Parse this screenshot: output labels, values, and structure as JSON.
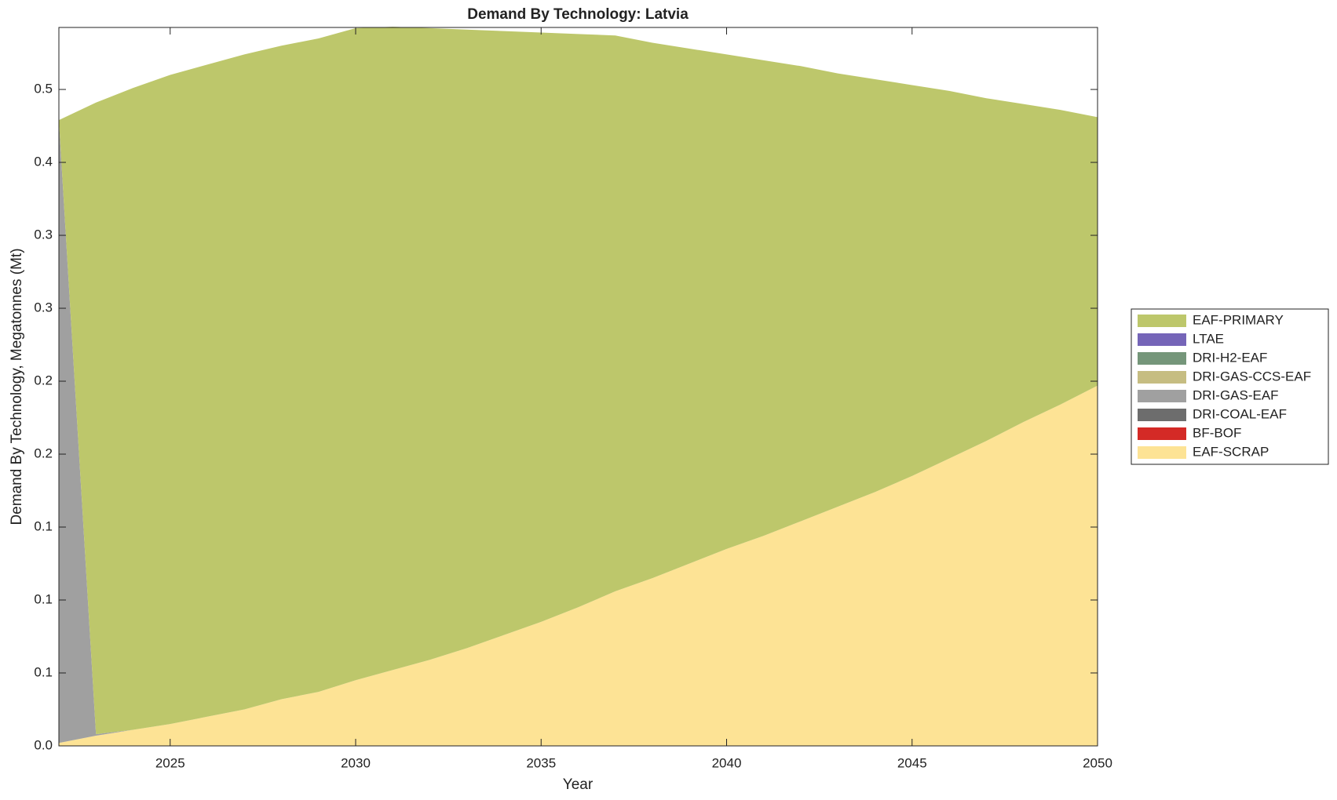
{
  "chart_data": {
    "type": "stacked_area",
    "title": "Demand By Technology: Latvia",
    "xlabel": "Year",
    "ylabel": "Demand By Technology, Megatonnes (Mt)",
    "x": [
      2022,
      2023,
      2024,
      2025,
      2026,
      2027,
      2028,
      2029,
      2030,
      2031,
      2032,
      2033,
      2034,
      2035,
      2036,
      2037,
      2038,
      2039,
      2040,
      2041,
      2042,
      2043,
      2044,
      2045,
      2046,
      2047,
      2048,
      2049,
      2050
    ],
    "xlim": [
      2022,
      2050
    ],
    "xticks": [
      2025,
      2030,
      2035,
      2040,
      2045,
      2050
    ],
    "ylim": [
      0,
      0.4925
    ],
    "yticks": [
      {
        "value": 0,
        "label": "0.0"
      },
      {
        "value": 0.05,
        "label": "0.1"
      },
      {
        "value": 0.1,
        "label": "0.1"
      },
      {
        "value": 0.15,
        "label": "0.1"
      },
      {
        "value": 0.2,
        "label": "0.2"
      },
      {
        "value": 0.25,
        "label": "0.2"
      },
      {
        "value": 0.3,
        "label": "0.3"
      },
      {
        "value": 0.35,
        "label": "0.3"
      },
      {
        "value": 0.4,
        "label": "0.4"
      },
      {
        "value": 0.45,
        "label": "0.5"
      }
    ],
    "legend": "right",
    "series": [
      {
        "name": "EAF-PRIMARY",
        "color": "#bdc76b",
        "values": [
          0,
          0.433,
          0.44,
          0.445,
          0.447,
          0.449,
          0.448,
          0.448,
          0.447,
          0.441,
          0.433,
          0.424,
          0.414,
          0.404,
          0.393,
          0.381,
          0.367,
          0.353,
          0.339,
          0.326,
          0.312,
          0.297,
          0.283,
          0.268,
          0.252,
          0.235,
          0.218,
          0.202,
          0.184
        ]
      },
      {
        "name": "LTAE",
        "color": "#7565b8",
        "values": [
          0,
          0,
          0,
          0,
          0,
          0,
          0,
          0,
          0,
          0,
          0,
          0,
          0,
          0,
          0,
          0,
          0,
          0,
          0,
          0,
          0,
          0,
          0,
          0,
          0,
          0,
          0,
          0,
          0
        ]
      },
      {
        "name": "DRI-H2-EAF",
        "color": "#75967a",
        "values": [
          0,
          0,
          0,
          0,
          0,
          0,
          0,
          0,
          0,
          0,
          0,
          0,
          0,
          0,
          0,
          0,
          0,
          0,
          0,
          0,
          0,
          0,
          0,
          0,
          0,
          0,
          0,
          0,
          0
        ]
      },
      {
        "name": "DRI-GAS-CCS-EAF",
        "color": "#c6bd82",
        "values": [
          0,
          0,
          0,
          0,
          0,
          0,
          0,
          0,
          0,
          0,
          0,
          0,
          0,
          0,
          0,
          0,
          0,
          0,
          0,
          0,
          0,
          0,
          0,
          0,
          0,
          0,
          0,
          0,
          0
        ]
      },
      {
        "name": "DRI-GAS-EAF",
        "color": "#a0a0a0",
        "values": [
          0.427,
          0.001,
          0,
          0,
          0,
          0,
          0,
          0,
          0,
          0,
          0,
          0,
          0,
          0,
          0,
          0,
          0,
          0,
          0,
          0,
          0,
          0,
          0,
          0,
          0,
          0,
          0,
          0,
          0
        ]
      },
      {
        "name": "DRI-COAL-EAF",
        "color": "#6d6d6d",
        "values": [
          0,
          0,
          0,
          0,
          0,
          0,
          0,
          0,
          0,
          0,
          0,
          0,
          0,
          0,
          0,
          0,
          0,
          0,
          0,
          0,
          0,
          0,
          0,
          0,
          0,
          0,
          0,
          0,
          0
        ]
      },
      {
        "name": "BF-BOF",
        "color": "#d42a26",
        "values": [
          0,
          0,
          0,
          0,
          0,
          0,
          0,
          0,
          0,
          0,
          0,
          0,
          0,
          0,
          0,
          0,
          0,
          0,
          0,
          0,
          0,
          0,
          0,
          0,
          0,
          0,
          0,
          0,
          0
        ]
      },
      {
        "name": "EAF-SCRAP",
        "color": "#fde395",
        "values": [
          0.002,
          0.007,
          0.011,
          0.015,
          0.02,
          0.025,
          0.032,
          0.037,
          0.045,
          0.052,
          0.059,
          0.067,
          0.076,
          0.085,
          0.095,
          0.106,
          0.115,
          0.125,
          0.135,
          0.144,
          0.154,
          0.164,
          0.174,
          0.185,
          0.197,
          0.209,
          0.222,
          0.234,
          0.247
        ]
      }
    ]
  }
}
